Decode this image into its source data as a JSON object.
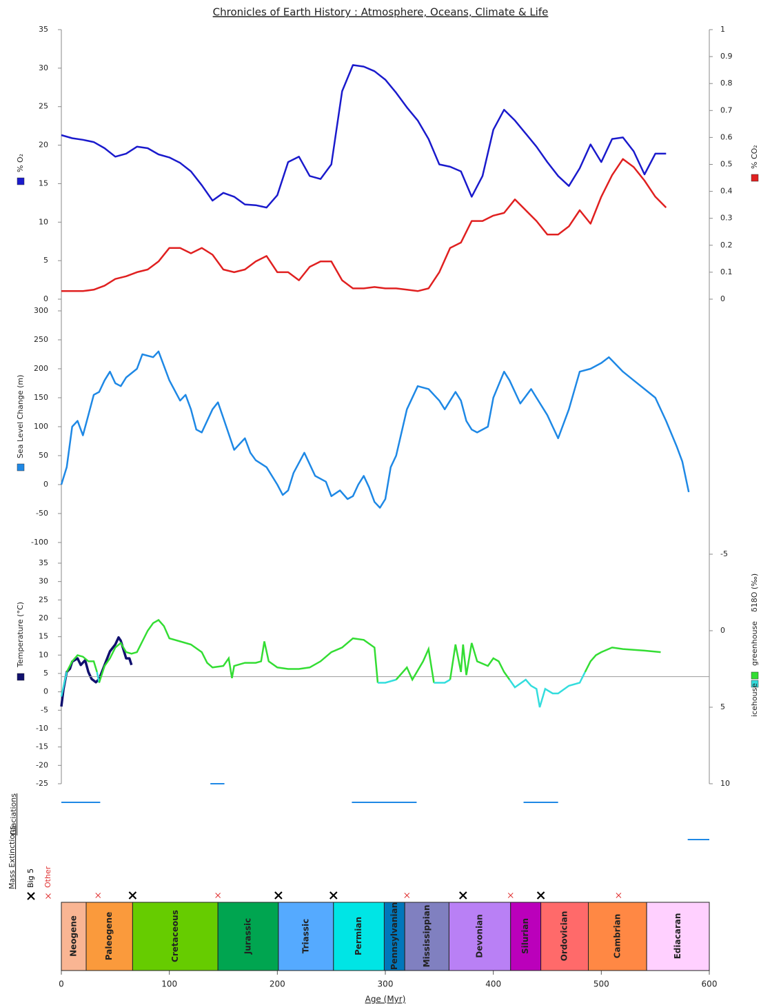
{
  "title": "Chronicles of Earth History : Atmosphere, Oceans, Climate & Life",
  "xlabel": "Age (Myr)",
  "xlim": [
    0,
    600
  ],
  "xticks": [
    0,
    100,
    200,
    300,
    400,
    500,
    600
  ],
  "chart_data": [
    {
      "type": "line",
      "x": [
        0,
        10,
        20,
        30,
        40,
        50,
        60,
        70,
        80,
        90,
        100,
        110,
        120,
        130,
        140,
        150,
        160,
        170,
        180,
        190,
        200,
        210,
        220,
        230,
        240,
        250,
        260,
        270,
        280,
        290,
        300,
        310,
        320,
        330,
        340,
        350,
        360,
        370,
        380,
        390,
        400,
        410,
        420,
        430,
        440,
        450,
        460,
        470,
        480,
        490,
        500,
        510,
        520,
        530,
        540,
        550,
        560
      ],
      "series": [
        {
          "name": "% O₂",
          "color": "#1a1acc",
          "values": [
            21.3,
            20.9,
            20.7,
            20.4,
            19.6,
            18.5,
            18.9,
            19.8,
            19.6,
            18.8,
            18.4,
            17.7,
            16.6,
            14.8,
            12.8,
            13.8,
            13.3,
            12.3,
            12.2,
            11.9,
            13.5,
            17.8,
            18.5,
            16.0,
            15.6,
            17.5,
            27.0,
            30.4,
            30.2,
            29.6,
            28.5,
            26.8,
            24.9,
            23.2,
            20.8,
            17.5,
            17.2,
            16.6,
            13.3,
            16.0,
            22.0,
            24.6,
            23.2,
            21.5,
            19.8,
            17.8,
            16.0,
            14.7,
            17.0,
            20.1,
            17.8,
            20.8,
            21.0,
            19.2,
            16.2,
            18.9,
            18.9
          ]
        },
        {
          "name": "% CO₂",
          "color": "#e02020",
          "axis": "y2",
          "values": [
            0.03,
            0.03,
            0.03,
            0.035,
            0.05,
            0.075,
            0.085,
            0.1,
            0.11,
            0.14,
            0.19,
            0.19,
            0.17,
            0.19,
            0.165,
            0.11,
            0.1,
            0.11,
            0.14,
            0.16,
            0.1,
            0.1,
            0.07,
            0.12,
            0.14,
            0.14,
            0.07,
            0.04,
            0.04,
            0.045,
            0.04,
            0.04,
            0.035,
            0.03,
            0.04,
            0.1,
            0.19,
            0.21,
            0.29,
            0.29,
            0.31,
            0.32,
            0.37,
            0.33,
            0.29,
            0.24,
            0.24,
            0.27,
            0.33,
            0.28,
            0.38,
            0.46,
            0.52,
            0.49,
            0.44,
            0.38,
            0.34
          ]
        }
      ],
      "ylim": [
        0,
        35
      ],
      "yticks": [
        0,
        5,
        10,
        15,
        20,
        25,
        30,
        35
      ],
      "y2lim": [
        0,
        1
      ],
      "y2ticks": [
        0,
        0.1,
        0.2,
        0.3,
        0.4,
        0.5,
        0.6,
        0.7,
        0.8,
        0.9,
        1
      ]
    },
    {
      "type": "line",
      "x": [
        0,
        5,
        10,
        15,
        20,
        25,
        30,
        35,
        40,
        45,
        50,
        55,
        60,
        70,
        75,
        85,
        90,
        100,
        110,
        115,
        120,
        125,
        130,
        140,
        145,
        150,
        160,
        170,
        175,
        180,
        190,
        200,
        205,
        210,
        215,
        225,
        235,
        245,
        250,
        258,
        265,
        270,
        275,
        280,
        285,
        290,
        295,
        300,
        305,
        310,
        320,
        330,
        340,
        350,
        355,
        365,
        370,
        375,
        380,
        385,
        395,
        400,
        410,
        415,
        425,
        435,
        440,
        450,
        455,
        460,
        470,
        480,
        490,
        500,
        507,
        520,
        530,
        540,
        550,
        560,
        570,
        575,
        581
      ],
      "series": [
        {
          "name": "Sea Level Change (m)",
          "color": "#1e88e5",
          "values": [
            0,
            30,
            100,
            110,
            85,
            120,
            155,
            160,
            180,
            195,
            175,
            170,
            185,
            200,
            225,
            220,
            230,
            180,
            145,
            155,
            130,
            95,
            90,
            130,
            142,
            115,
            60,
            80,
            55,
            42,
            30,
            0,
            -18,
            -10,
            20,
            55,
            15,
            5,
            -20,
            -10,
            -25,
            -20,
            0,
            15,
            -5,
            -30,
            -40,
            -25,
            30,
            50,
            130,
            170,
            165,
            145,
            130,
            160,
            145,
            110,
            95,
            90,
            100,
            150,
            195,
            180,
            140,
            165,
            150,
            120,
            100,
            80,
            130,
            195,
            200,
            210,
            220,
            195,
            180,
            165,
            150,
            110,
            65,
            40,
            -13
          ]
        }
      ],
      "ylim": [
        -100,
        300
      ],
      "yticks": [
        -100,
        -50,
        0,
        50,
        100,
        150,
        200,
        250,
        300
      ]
    },
    {
      "type": "line",
      "series": [
        {
          "name": "Temperature (°C)",
          "color": "#10106e",
          "x": [
            0,
            2,
            5,
            8,
            10,
            15,
            18,
            22,
            25,
            28,
            32,
            35,
            40,
            45,
            50,
            53,
            55,
            58,
            60,
            63,
            65
          ],
          "values": [
            -4,
            0.7,
            5.4,
            6.3,
            8.2,
            9.1,
            7.3,
            8.6,
            5.4,
            3.5,
            2.6,
            3.5,
            7.3,
            11,
            12.9,
            14.8,
            13.9,
            11,
            9.1,
            9.1,
            7.3
          ]
        },
        {
          "name": "δ18O (‰)",
          "axis": "y2",
          "threshold": 3,
          "x": [
            0,
            5,
            10,
            15,
            20,
            25,
            30,
            33,
            35,
            40,
            45,
            50,
            55,
            60,
            65,
            70,
            75,
            80,
            85,
            90,
            95,
            100,
            110,
            120,
            130,
            135,
            140,
            150,
            155,
            158,
            160,
            170,
            180,
            185,
            188,
            192,
            200,
            210,
            220,
            230,
            240,
            250,
            260,
            270,
            280,
            290,
            293,
            300,
            310,
            320,
            325,
            335,
            340,
            345,
            355,
            360,
            365,
            370,
            372,
            375,
            380,
            385,
            395,
            400,
            405,
            410,
            415,
            420,
            430,
            435,
            440,
            443,
            448,
            455,
            460,
            470,
            480,
            485,
            490,
            495,
            500,
            510,
            520,
            540,
            555
          ],
          "values": [
            4.3,
            2.7,
            2.0,
            1.6,
            1.7,
            2.0,
            2.0,
            2.7,
            3.4,
            2.3,
            1.8,
            1.1,
            0.8,
            1.4,
            1.5,
            1.4,
            0.7,
            0,
            -0.5,
            -0.7,
            -0.3,
            0.5,
            0.7,
            0.9,
            1.4,
            2.1,
            2.4,
            2.3,
            1.8,
            3.1,
            2.3,
            2.1,
            2.1,
            2.0,
            0.7,
            2.0,
            2.4,
            2.5,
            2.5,
            2.4,
            2.0,
            1.4,
            1.1,
            0.5,
            0.6,
            1.1,
            3.4,
            3.4,
            3.2,
            2.4,
            3.2,
            2.0,
            1.2,
            3.4,
            3.4,
            3.2,
            0.9,
            2.7,
            0.9,
            2.9,
            0.8,
            2.0,
            2.3,
            1.8,
            2.0,
            2.7,
            3.2,
            3.7,
            3.2,
            3.6,
            3.8,
            5.0,
            3.8,
            4.1,
            4.1,
            3.6,
            3.4,
            2.7,
            2.0,
            1.6,
            1.4,
            1.1,
            1.2,
            1.3,
            1.4
          ]
        }
      ],
      "regimes": [
        {
          "name": "icehouse",
          "color": "#33dddd"
        },
        {
          "name": "greenhouse",
          "color": "#33dd33"
        }
      ],
      "ylim": [
        -25,
        35
      ],
      "yticks": [
        -25,
        -20,
        -15,
        -10,
        -5,
        0,
        5,
        10,
        15,
        20,
        25,
        30,
        35
      ],
      "y2lim": [
        10,
        -5
      ],
      "y2ticks": [
        -5,
        0,
        5,
        10
      ]
    },
    {
      "type": "range",
      "label": "Glaciations",
      "color": "#1e88e5",
      "ranges": [
        [
          0,
          36
        ],
        [
          138,
          151
        ],
        [
          269,
          329
        ],
        [
          428,
          460
        ],
        [
          580,
          600
        ]
      ]
    },
    {
      "type": "scatter",
      "label": "Mass Extinctions",
      "series": [
        {
          "name": "Big 5",
          "color": "#000000",
          "x": [
            66,
            201,
            252,
            372,
            444
          ]
        },
        {
          "name": "Other",
          "color": "#e03030",
          "x": [
            34,
            145,
            320,
            416,
            516
          ]
        }
      ]
    },
    {
      "type": "timeline",
      "periods": [
        {
          "name": "Neogene",
          "start": 0,
          "end": 23,
          "color": "#f9b593"
        },
        {
          "name": "Paleogene",
          "start": 23,
          "end": 66,
          "color": "#fa9a3c"
        },
        {
          "name": "Cretaceous",
          "start": 66,
          "end": 145,
          "color": "#66cc00"
        },
        {
          "name": "Jurassic",
          "start": 145,
          "end": 201,
          "color": "#00a550"
        },
        {
          "name": "Triassic",
          "start": 201,
          "end": 252,
          "color": "#55aaff"
        },
        {
          "name": "Permian",
          "start": 252,
          "end": 299,
          "color": "#00e5e5"
        },
        {
          "name": "Pennsylvanian",
          "start": 299,
          "end": 318,
          "color": "#0077bb"
        },
        {
          "name": "Mississippian",
          "start": 318,
          "end": 359,
          "color": "#8080c0"
        },
        {
          "name": "Devonian",
          "start": 359,
          "end": 416,
          "color": "#b980f5"
        },
        {
          "name": "Silurian",
          "start": 416,
          "end": 444,
          "color": "#bb00bb"
        },
        {
          "name": "Ordovician",
          "start": 444,
          "end": 488,
          "color": "#ff6a6a"
        },
        {
          "name": "Cambrian",
          "start": 488,
          "end": 542,
          "color": "#ff8844"
        },
        {
          "name": "Ediacaran",
          "start": 542,
          "end": 600,
          "color": "#ffd0ff"
        }
      ]
    }
  ]
}
